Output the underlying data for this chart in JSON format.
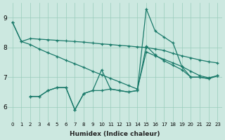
{
  "xlabel": "Humidex (Indice chaleur)",
  "bg_color": "#cce8e0",
  "grid_color": "#99ccbb",
  "line_color": "#1a7a6a",
  "xlim": [
    -0.5,
    23.5
  ],
  "ylim": [
    5.5,
    9.5
  ],
  "yticks": [
    6,
    7,
    8,
    9
  ],
  "xticks": [
    0,
    1,
    2,
    3,
    4,
    5,
    6,
    7,
    8,
    9,
    10,
    11,
    12,
    13,
    14,
    15,
    16,
    17,
    18,
    19,
    20,
    21,
    22,
    23
  ],
  "line1_x": [
    0,
    1,
    2,
    3,
    4,
    5,
    6,
    7,
    8,
    9,
    10,
    11,
    12,
    13,
    14,
    15,
    16,
    17,
    18,
    19,
    20,
    21,
    22,
    23
  ],
  "line1_y": [
    8.85,
    8.2,
    8.3,
    8.28,
    8.26,
    8.24,
    8.22,
    8.2,
    8.18,
    8.15,
    8.12,
    8.1,
    8.07,
    8.05,
    8.02,
    8.0,
    7.95,
    7.9,
    7.8,
    7.72,
    7.65,
    7.58,
    7.52,
    7.48
  ],
  "line2_x": [
    0,
    1,
    2,
    3,
    4,
    5,
    6,
    7,
    8,
    9,
    10,
    11,
    12,
    13,
    14,
    15,
    16,
    17,
    18,
    19,
    20,
    21,
    22,
    23
  ],
  "line2_y": [
    8.85,
    8.2,
    8.1,
    7.95,
    7.82,
    7.7,
    7.57,
    7.45,
    7.33,
    7.2,
    7.08,
    6.96,
    6.84,
    6.72,
    6.6,
    7.85,
    7.72,
    7.6,
    7.48,
    7.36,
    7.2,
    7.05,
    6.98,
    7.05
  ],
  "line3_x": [
    2,
    3,
    4,
    5,
    6,
    7,
    8,
    9,
    10,
    11,
    12,
    13,
    14,
    15,
    16,
    17,
    18,
    19,
    20,
    21,
    22,
    23
  ],
  "line3_y": [
    6.35,
    6.35,
    6.55,
    6.65,
    6.65,
    5.9,
    6.45,
    6.55,
    7.25,
    6.6,
    6.55,
    6.5,
    6.55,
    9.3,
    8.55,
    8.35,
    8.15,
    7.35,
    7.0,
    7.0,
    6.95,
    7.05
  ],
  "line4_x": [
    2,
    3,
    4,
    5,
    6,
    7,
    8,
    9,
    10,
    11,
    12,
    13,
    14,
    15,
    16,
    17,
    18,
    19,
    20,
    21,
    22,
    23
  ],
  "line4_y": [
    6.35,
    6.35,
    6.55,
    6.65,
    6.65,
    5.9,
    6.45,
    6.55,
    6.55,
    6.6,
    6.55,
    6.5,
    6.55,
    8.05,
    7.75,
    7.55,
    7.4,
    7.25,
    7.0,
    7.0,
    6.95,
    7.05
  ]
}
